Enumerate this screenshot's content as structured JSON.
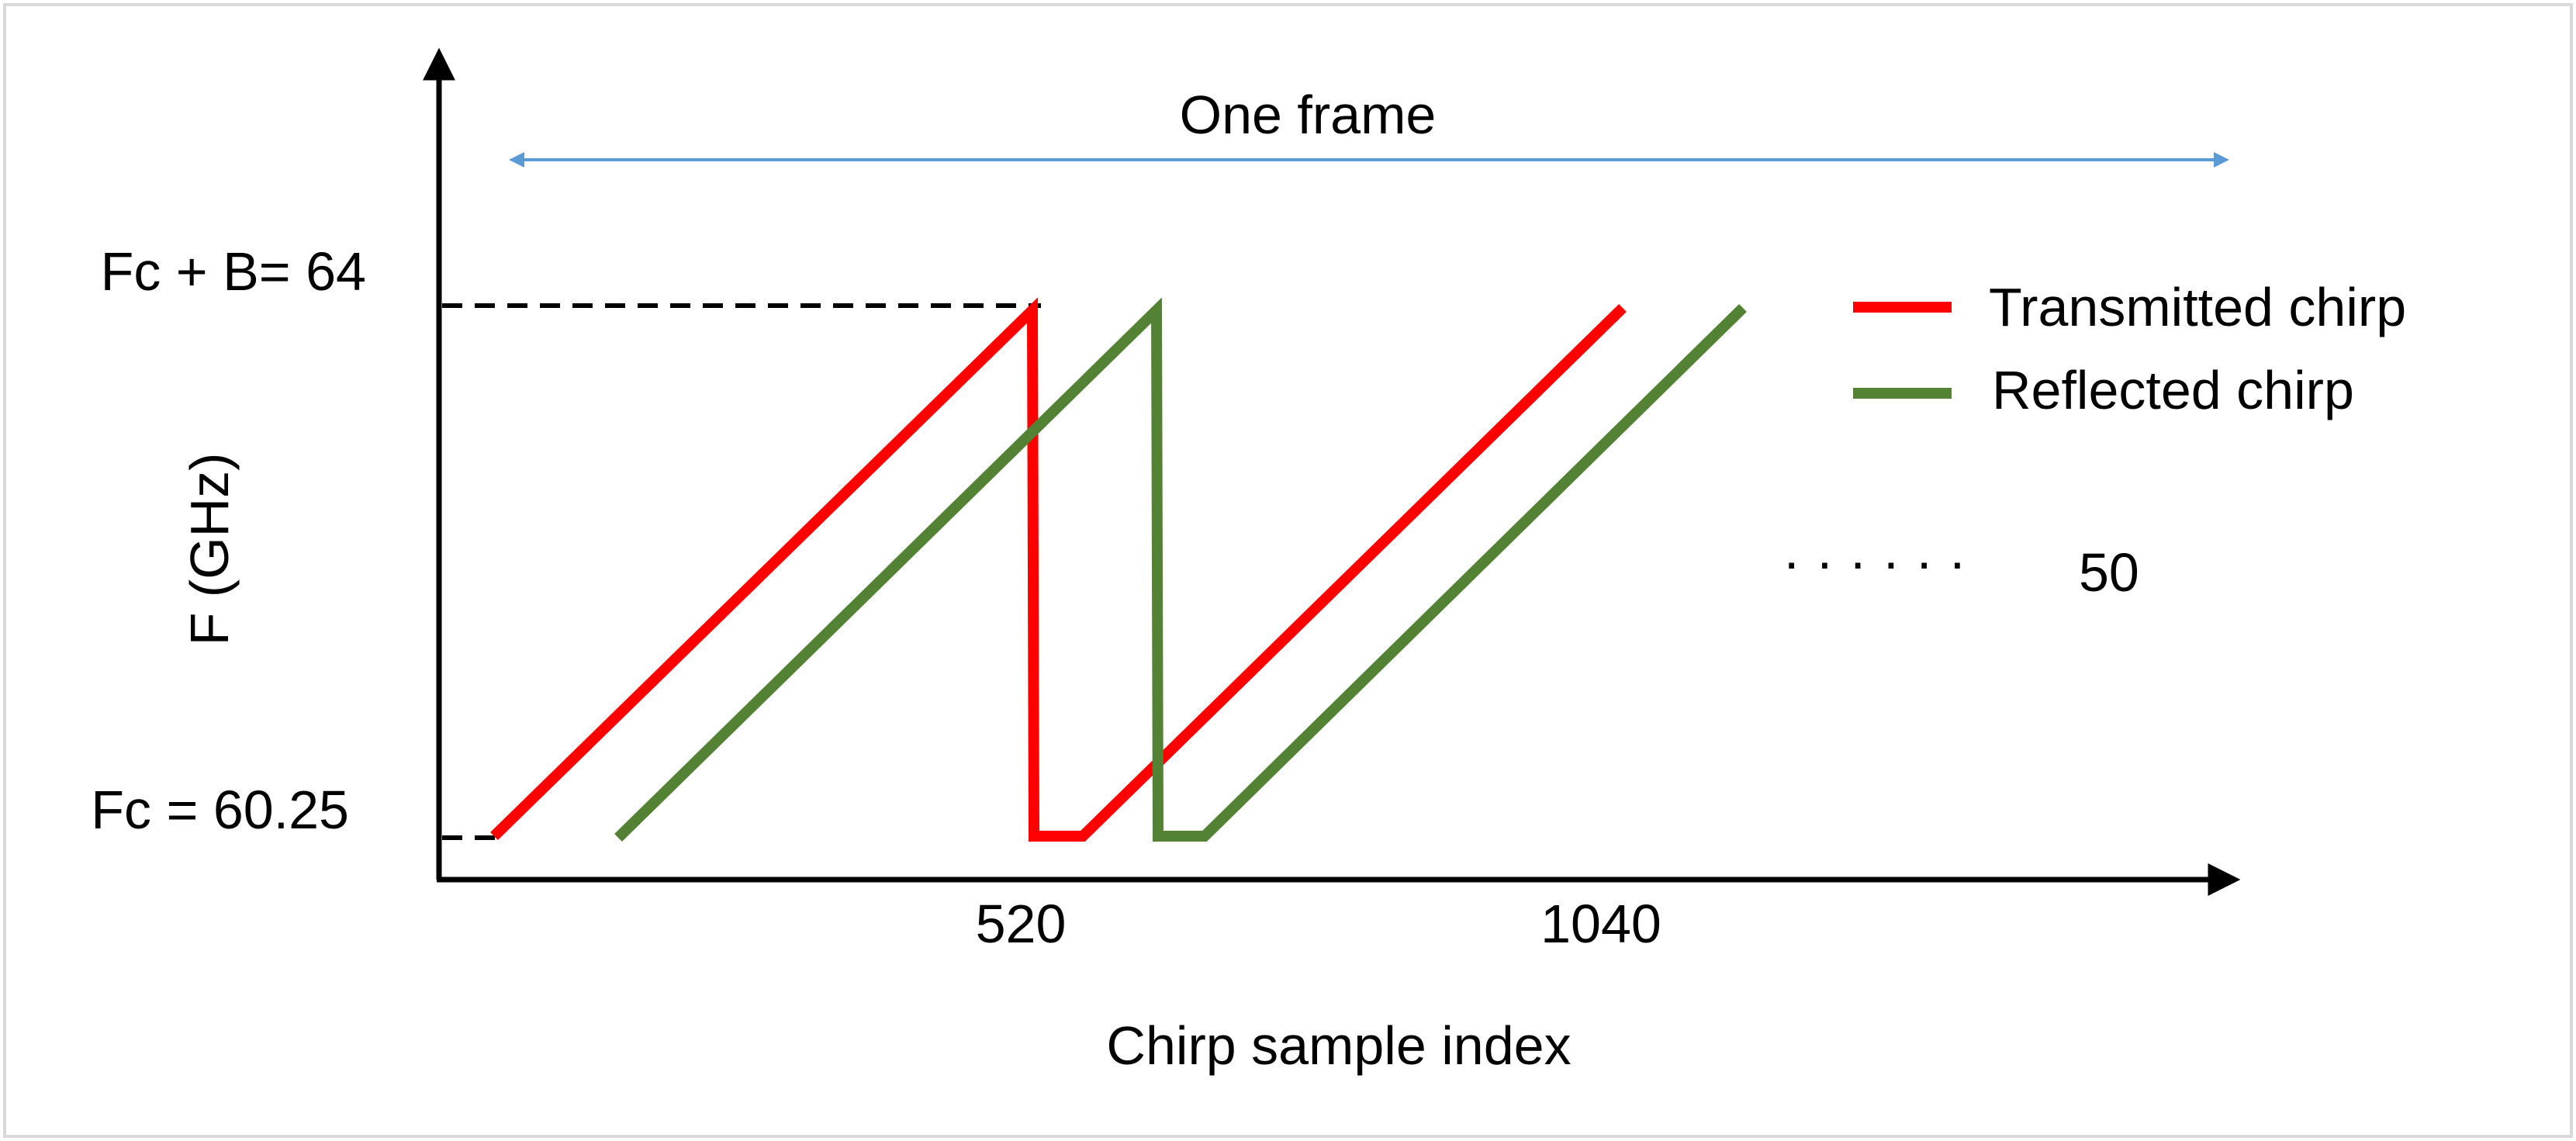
{
  "figure": {
    "y_axis_label": "F (GHz)",
    "x_axis_label": "Chirp sample index",
    "y_top_label": "Fc + B= 64",
    "y_bottom_label": "Fc = 60.25",
    "frame_label": "One frame",
    "x_tick_1": "520",
    "x_tick_2": "1040",
    "ellipsis": "· · · · · ·",
    "chirp_count": "50",
    "legend": {
      "transmitted": "Transmitted chirp",
      "reflected": "Reflected chirp"
    },
    "colors": {
      "transmitted": "#ff0000",
      "reflected": "#548235",
      "frame_arrow": "#5b9bd5",
      "axes": "#000000"
    }
  }
}
